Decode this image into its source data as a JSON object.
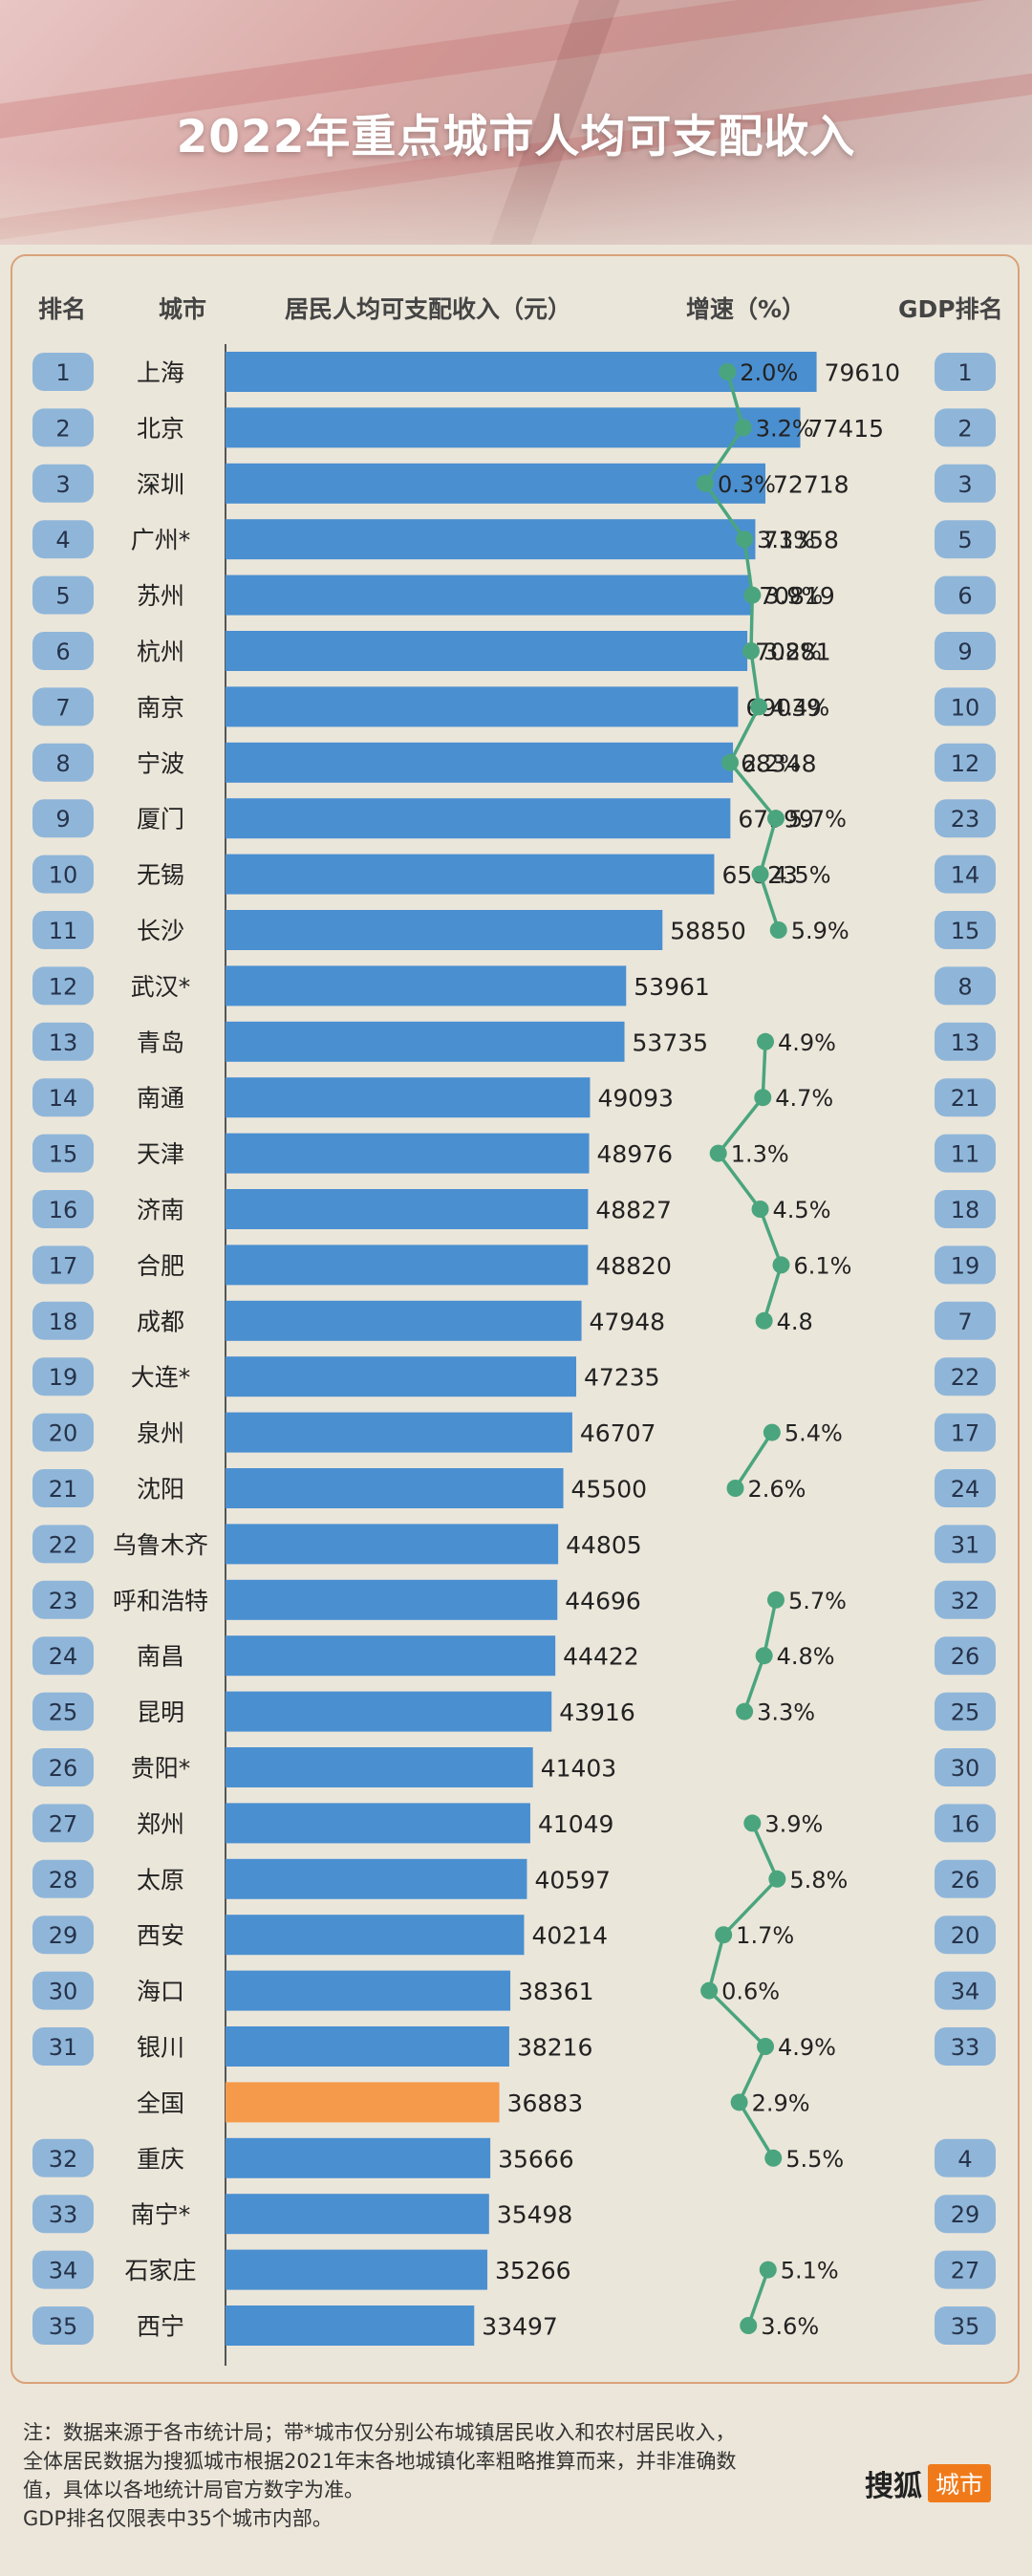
{
  "title": "2022年重点城市人均可支配收入",
  "headers": {
    "rank": "排名",
    "city": "城市",
    "income": "居民人均可支配收入（元）",
    "growth": "增速（%）",
    "gdp_rank": "GDP排名"
  },
  "colors": {
    "bar": "#4a8fd0",
    "highlight": "#f59a4a",
    "pill": "#8fb6d9",
    "line": "#4aa57e",
    "border": "#d9a27a"
  },
  "chart_data": {
    "type": "bar",
    "orientation": "horizontal",
    "rows": [
      {
        "rank": "1",
        "city": "上海",
        "income": 79610,
        "growth": 2.0,
        "growth_label": "2.0%",
        "gdp_rank": "1"
      },
      {
        "rank": "2",
        "city": "北京",
        "income": 77415,
        "growth": 3.2,
        "growth_label": "3.2%",
        "gdp_rank": "2"
      },
      {
        "rank": "3",
        "city": "深圳",
        "income": 72718,
        "growth": 0.3,
        "growth_label": "0.3%",
        "gdp_rank": "3"
      },
      {
        "rank": "4",
        "city": "广州*",
        "income": 71358,
        "growth": 3.3,
        "growth_label": "3.3%",
        "gdp_rank": "5"
      },
      {
        "rank": "5",
        "city": "苏州",
        "income": 70819,
        "growth": 3.9,
        "growth_label": "3.9%",
        "gdp_rank": "6"
      },
      {
        "rank": "6",
        "city": "杭州",
        "income": 70281,
        "growth": 3.8,
        "growth_label": "3.8%",
        "gdp_rank": "9"
      },
      {
        "rank": "7",
        "city": "南京",
        "income": 69039,
        "growth": 4.4,
        "growth_label": "4.4%",
        "gdp_rank": "10"
      },
      {
        "rank": "8",
        "city": "宁波",
        "income": 68348,
        "growth": 2.2,
        "growth_label": "2.2%",
        "gdp_rank": "12"
      },
      {
        "rank": "9",
        "city": "厦门",
        "income": 67999,
        "growth": 5.7,
        "growth_label": "5.7%",
        "gdp_rank": "23"
      },
      {
        "rank": "10",
        "city": "无锡",
        "income": 65823,
        "growth": 4.5,
        "growth_label": "4.5%",
        "gdp_rank": "14"
      },
      {
        "rank": "11",
        "city": "长沙",
        "income": 58850,
        "growth": 5.9,
        "growth_label": "5.9%",
        "gdp_rank": "15"
      },
      {
        "rank": "12",
        "city": "武汉*",
        "income": 53961,
        "growth": null,
        "growth_label": "",
        "gdp_rank": "8"
      },
      {
        "rank": "13",
        "city": "青岛",
        "income": 53735,
        "growth": 4.9,
        "growth_label": "4.9%",
        "gdp_rank": "13"
      },
      {
        "rank": "14",
        "city": "南通",
        "income": 49093,
        "growth": 4.7,
        "growth_label": "4.7%",
        "gdp_rank": "21"
      },
      {
        "rank": "15",
        "city": "天津",
        "income": 48976,
        "growth": 1.3,
        "growth_label": "1.3%",
        "gdp_rank": "11"
      },
      {
        "rank": "16",
        "city": "济南",
        "income": 48827,
        "growth": 4.5,
        "growth_label": "4.5%",
        "gdp_rank": "18"
      },
      {
        "rank": "17",
        "city": "合肥",
        "income": 48820,
        "growth": 6.1,
        "growth_label": "6.1%",
        "gdp_rank": "19"
      },
      {
        "rank": "18",
        "city": "成都",
        "income": 47948,
        "growth": 4.8,
        "growth_label": "4.8",
        "gdp_rank": "7"
      },
      {
        "rank": "19",
        "city": "大连*",
        "income": 47235,
        "growth": null,
        "growth_label": "",
        "gdp_rank": "22"
      },
      {
        "rank": "20",
        "city": "泉州",
        "income": 46707,
        "growth": 5.4,
        "growth_label": "5.4%",
        "gdp_rank": "17"
      },
      {
        "rank": "21",
        "city": "沈阳",
        "income": 45500,
        "growth": 2.6,
        "growth_label": "2.6%",
        "gdp_rank": "24"
      },
      {
        "rank": "22",
        "city": "乌鲁木齐",
        "income": 44805,
        "growth": null,
        "growth_label": "",
        "gdp_rank": "31"
      },
      {
        "rank": "23",
        "city": "呼和浩特",
        "income": 44696,
        "growth": 5.7,
        "growth_label": "5.7%",
        "gdp_rank": "32"
      },
      {
        "rank": "24",
        "city": "南昌",
        "income": 44422,
        "growth": 4.8,
        "growth_label": "4.8%",
        "gdp_rank": "26"
      },
      {
        "rank": "25",
        "city": "昆明",
        "income": 43916,
        "growth": 3.3,
        "growth_label": "3.3%",
        "gdp_rank": "25"
      },
      {
        "rank": "26",
        "city": "贵阳*",
        "income": 41403,
        "growth": null,
        "growth_label": "",
        "gdp_rank": "30"
      },
      {
        "rank": "27",
        "city": "郑州",
        "income": 41049,
        "growth": 3.9,
        "growth_label": "3.9%",
        "gdp_rank": "16"
      },
      {
        "rank": "28",
        "city": "太原",
        "income": 40597,
        "growth": 5.8,
        "growth_label": "5.8%",
        "gdp_rank": "26"
      },
      {
        "rank": "29",
        "city": "西安",
        "income": 40214,
        "growth": 1.7,
        "growth_label": "1.7%",
        "gdp_rank": "20"
      },
      {
        "rank": "30",
        "city": "海口",
        "income": 38361,
        "growth": 0.6,
        "growth_label": "0.6%",
        "gdp_rank": "34"
      },
      {
        "rank": "31",
        "city": "银川",
        "income": 38216,
        "growth": 4.9,
        "growth_label": "4.9%",
        "gdp_rank": "33"
      },
      {
        "rank": "",
        "city": "全国",
        "income": 36883,
        "growth": 2.9,
        "growth_label": "2.9%",
        "gdp_rank": "",
        "highlight": true
      },
      {
        "rank": "32",
        "city": "重庆",
        "income": 35666,
        "growth": 5.5,
        "growth_label": "5.5%",
        "gdp_rank": "4"
      },
      {
        "rank": "33",
        "city": "南宁*",
        "income": 35498,
        "growth": null,
        "growth_label": "",
        "gdp_rank": "29"
      },
      {
        "rank": "34",
        "city": "石家庄",
        "income": 35266,
        "growth": 5.1,
        "growth_label": "5.1%",
        "gdp_rank": "27"
      },
      {
        "rank": "35",
        "city": "西宁",
        "income": 33497,
        "growth": 3.6,
        "growth_label": "3.6%",
        "gdp_rank": "35"
      }
    ],
    "growth_line_segments": [
      [
        0,
        10
      ],
      [
        12,
        17
      ],
      [
        19,
        20
      ],
      [
        22,
        24
      ],
      [
        26,
        33
      ],
      [
        34,
        35
      ]
    ]
  },
  "notes": [
    "注：数据来源于各市统计局；带*城市仅分别公布城镇居民收入和农村居民收入，",
    "全体居民数据为搜狐城市根据2021年末各地城镇化率粗略推算而来，并非准确数",
    "值，具体以各地统计局官方数字为准。",
    "GDP排名仅限表中35个城市内部。"
  ],
  "brand": {
    "name": "搜狐",
    "tag": "城市"
  }
}
